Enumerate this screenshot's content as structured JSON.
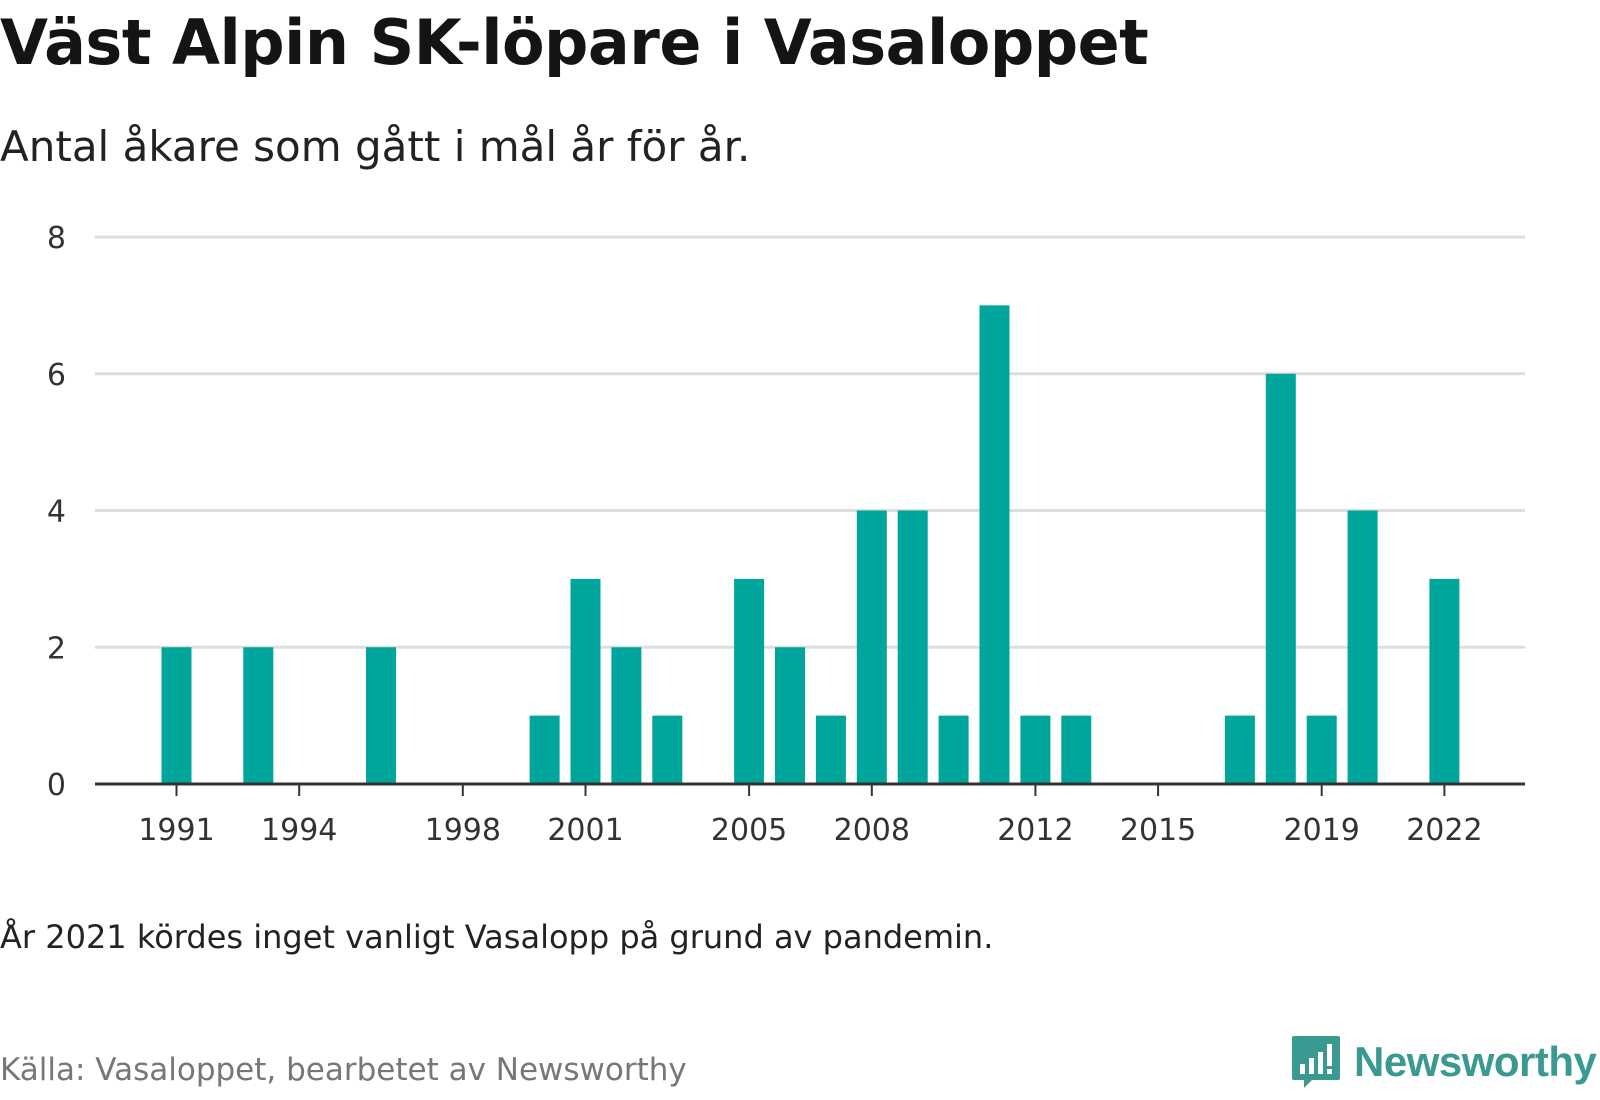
{
  "title": "Väst Alpin SK-löpare i Vasaloppet",
  "subtitle": "Antal åkare som gått i mål år för år.",
  "note": "År 2021 kördes inget vanligt Vasalopp på grund av pandemin.",
  "source": "Källa: Vasaloppet, bearbetet av Newsworthy",
  "brand": {
    "name": "Newsworthy",
    "icon": "newsworthy-logo-icon",
    "color": "#3a9a91"
  },
  "colors": {
    "bar": "#00a59b",
    "grid": "#dddddd",
    "axis": "#333333"
  },
  "chart_data": {
    "type": "bar",
    "title": "Väst Alpin SK-löpare i Vasaloppet",
    "subtitle": "Antal åkare som gått i mål år för år.",
    "xlabel": "",
    "ylabel": "",
    "ylim": [
      0,
      8
    ],
    "yticks": [
      0,
      2,
      4,
      6,
      8
    ],
    "xticks": [
      1991,
      1994,
      1998,
      2001,
      2005,
      2008,
      2012,
      2015,
      2019,
      2022
    ],
    "grid": true,
    "categories": [
      1991,
      1992,
      1993,
      1994,
      1995,
      1996,
      1997,
      1998,
      1999,
      2000,
      2001,
      2002,
      2003,
      2004,
      2005,
      2006,
      2007,
      2008,
      2009,
      2010,
      2011,
      2012,
      2013,
      2014,
      2015,
      2016,
      2017,
      2018,
      2019,
      2020,
      2021,
      2022
    ],
    "values": [
      2,
      0,
      2,
      0,
      0,
      2,
      0,
      0,
      0,
      1,
      3,
      2,
      1,
      0,
      3,
      2,
      1,
      4,
      4,
      1,
      7,
      1,
      1,
      0,
      0,
      0,
      1,
      6,
      1,
      4,
      0,
      3
    ]
  }
}
